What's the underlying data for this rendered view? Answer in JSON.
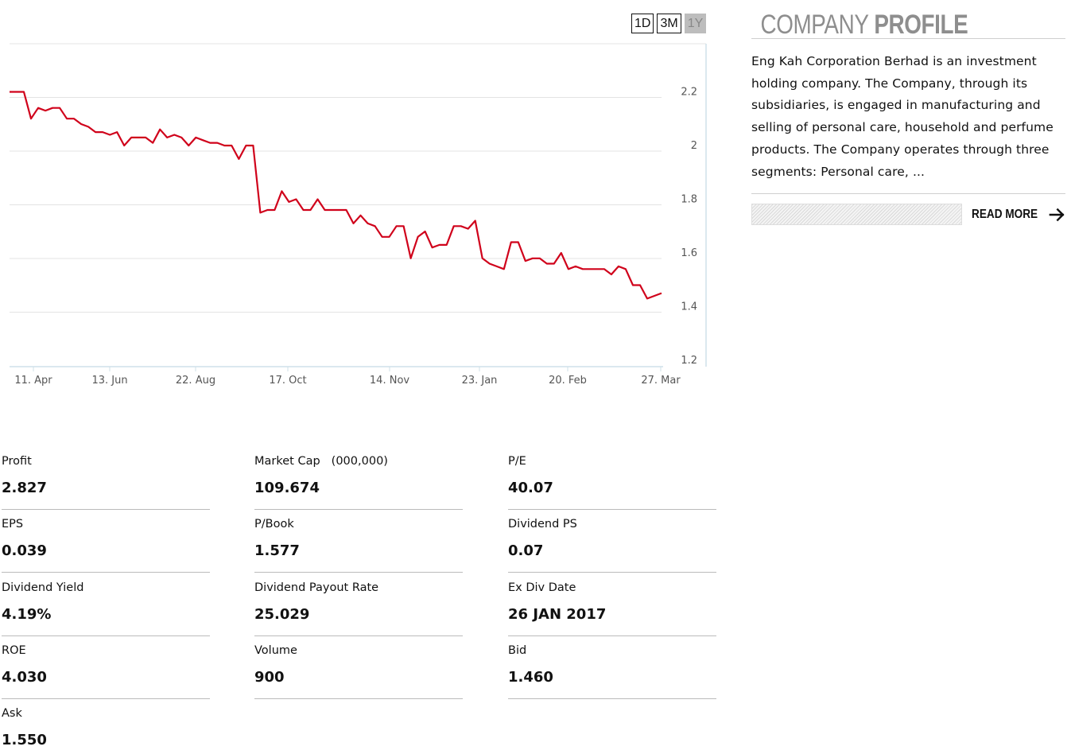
{
  "range_buttons": [
    {
      "label": "1D",
      "active": false
    },
    {
      "label": "3M",
      "active": false
    },
    {
      "label": "1Y",
      "active": true
    }
  ],
  "chart_data": {
    "type": "line",
    "series_color": "#d0021b",
    "grid": true,
    "yaxis_position": "right",
    "ylim": [
      1.2,
      2.3
    ],
    "y_ticks": [
      "2.2",
      "2",
      "1.8",
      "1.6",
      "1.4",
      "1.2"
    ],
    "x_tick_labels": [
      "11. Apr",
      "13. Jun",
      "22. Aug",
      "17. Oct",
      "14. Nov",
      "23. Jan",
      "20. Feb",
      "27. Mar"
    ],
    "values": [
      2.2,
      2.2,
      2.2,
      2.1,
      2.14,
      2.13,
      2.14,
      2.14,
      2.1,
      2.1,
      2.08,
      2.07,
      2.05,
      2.05,
      2.04,
      2.05,
      2.0,
      2.03,
      2.03,
      2.03,
      2.01,
      2.06,
      2.03,
      2.04,
      2.03,
      2.0,
      2.03,
      2.02,
      2.01,
      2.01,
      2.0,
      2.0,
      1.95,
      2.0,
      2.0,
      1.75,
      1.76,
      1.76,
      1.83,
      1.79,
      1.8,
      1.76,
      1.76,
      1.8,
      1.76,
      1.76,
      1.76,
      1.76,
      1.71,
      1.74,
      1.71,
      1.7,
      1.66,
      1.66,
      1.7,
      1.7,
      1.58,
      1.66,
      1.68,
      1.62,
      1.63,
      1.63,
      1.7,
      1.7,
      1.69,
      1.72,
      1.58,
      1.56,
      1.55,
      1.54,
      1.64,
      1.64,
      1.57,
      1.58,
      1.58,
      1.56,
      1.56,
      1.6,
      1.54,
      1.55,
      1.54,
      1.54,
      1.54,
      1.54,
      1.52,
      1.55,
      1.54,
      1.48,
      1.48,
      1.43,
      1.44,
      1.45
    ]
  },
  "profile": {
    "title_light": "COMPANY",
    "title_bold": "PROFILE",
    "description": "Eng Kah Corporation Berhad is an investment holding company. The Company, through its subsidiaries, is engaged in manufacturing and selling of personal care, household and perfume products. The Company operates through three segments: Personal care, ...",
    "read_more": "READ MORE",
    "arrow_icon": "arrow-right-icon"
  },
  "stats": {
    "profit": {
      "label": "Profit",
      "value": "2.827"
    },
    "market_cap": {
      "label": "Market Cap",
      "unit": "(000,000)",
      "value": "109.674"
    },
    "pe": {
      "label": "P/E",
      "value": "40.07"
    },
    "eps": {
      "label": "EPS",
      "value": "0.039"
    },
    "pbook": {
      "label": "P/Book",
      "value": "1.577"
    },
    "dividend_ps": {
      "label": "Dividend PS",
      "value": "0.07"
    },
    "dividend_yield": {
      "label": "Dividend Yield",
      "value": "4.19%"
    },
    "payout_rate": {
      "label": "Dividend Payout Rate",
      "value": "25.029"
    },
    "ex_div_date": {
      "label": "Ex Div Date",
      "value": "26 JAN 2017"
    },
    "roe": {
      "label": "ROE",
      "value": "4.030"
    },
    "volume": {
      "label": "Volume",
      "value": "900"
    },
    "bid": {
      "label": "Bid",
      "value": "1.460"
    },
    "ask": {
      "label": "Ask",
      "value": "1.550"
    }
  }
}
